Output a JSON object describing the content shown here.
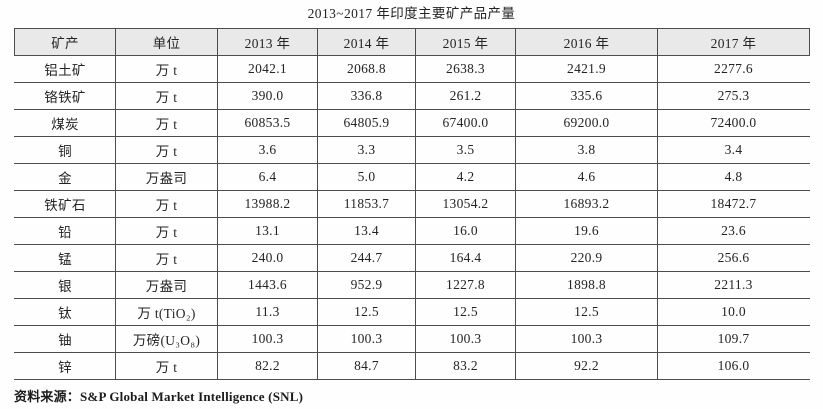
{
  "title": "2013~2017 年印度主要矿产品产量",
  "table": {
    "columns": [
      "矿产",
      "单位",
      "2013 年",
      "2014 年",
      "2015 年",
      "2016 年",
      "2017 年"
    ],
    "rows": [
      [
        "铝土矿",
        "万 t",
        "2042.1",
        "2068.8",
        "2638.3",
        "2421.9",
        "2277.6"
      ],
      [
        "铬铁矿",
        "万 t",
        "390.0",
        "336.8",
        "261.2",
        "335.6",
        "275.3"
      ],
      [
        "煤炭",
        "万 t",
        "60853.5",
        "64805.9",
        "67400.0",
        "69200.0",
        "72400.0"
      ],
      [
        "铜",
        "万 t",
        "3.6",
        "3.3",
        "3.5",
        "3.8",
        "3.4"
      ],
      [
        "金",
        "万盎司",
        "6.4",
        "5.0",
        "4.2",
        "4.6",
        "4.8"
      ],
      [
        "铁矿石",
        "万 t",
        "13988.2",
        "11853.7",
        "13054.2",
        "16893.2",
        "18472.7"
      ],
      [
        "铅",
        "万 t",
        "13.1",
        "13.4",
        "16.0",
        "19.6",
        "23.6"
      ],
      [
        "锰",
        "万 t",
        "240.0",
        "244.7",
        "164.4",
        "220.9",
        "256.6"
      ],
      [
        "银",
        "万盎司",
        "1443.6",
        "952.9",
        "1227.8",
        "1898.8",
        "2211.3"
      ],
      [
        "钛",
        "万 t(TiO₂)",
        "11.3",
        "12.5",
        "12.5",
        "12.5",
        "10.0"
      ],
      [
        "铀",
        "万磅(U₃O₈)",
        "100.3",
        "100.3",
        "100.3",
        "100.3",
        "109.7"
      ],
      [
        "锌",
        "万 t",
        "82.2",
        "84.7",
        "83.2",
        "92.2",
        "106.0"
      ]
    ]
  },
  "source_note": "资料来源：S&P Global Market Intelligence (SNL)",
  "colors": {
    "header_bg": "#e9e9e9",
    "border": "#4d4d4d",
    "text": "#242424",
    "page_bg": "#fefefe"
  }
}
